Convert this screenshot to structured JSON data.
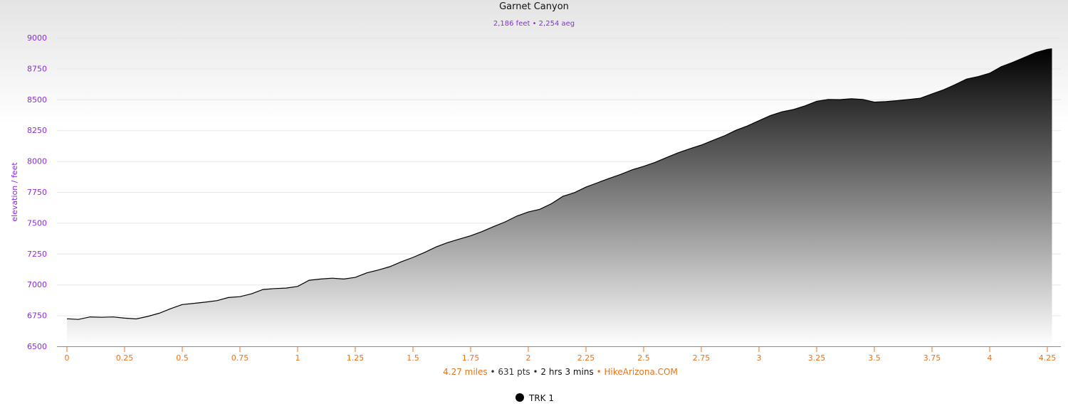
{
  "colors": {
    "purple": "#8a2be2",
    "orange": "#e8731c",
    "line": "#000000",
    "grid": "#e6e6e6"
  },
  "chart_data": {
    "type": "area",
    "title": "Garnet Canyon",
    "subtitle": "2,186 feet • 2,254 aeg",
    "ylabel": "elevation / feet",
    "xlabel": "",
    "xlim": [
      0,
      4.27
    ],
    "ylim": [
      6500,
      9000
    ],
    "x_ticks": [
      "0",
      "0.25",
      "0.5",
      "0.75",
      "1",
      "1.25",
      "1.5",
      "1.75",
      "2",
      "2.25",
      "2.5",
      "2.75",
      "3",
      "3.25",
      "3.5",
      "3.75",
      "4",
      "4.25"
    ],
    "y_ticks": [
      "6500",
      "6750",
      "7000",
      "7250",
      "7500",
      "7750",
      "8000",
      "8250",
      "8500",
      "8750",
      "9000"
    ],
    "footer": {
      "distance": "4.27 miles",
      "sep1": " • ",
      "points": "631 pts",
      "sep2": " • ",
      "duration": "2 hrs 3 mins",
      "sep3": " • ",
      "source": "HikeArizona.COM"
    },
    "grid": "horizontal",
    "legend_position": "bottom-center",
    "series": [
      {
        "name": "TRK 1",
        "x": [
          0,
          0.05,
          0.1,
          0.15,
          0.2,
          0.25,
          0.3,
          0.35,
          0.4,
          0.45,
          0.5,
          0.55,
          0.6,
          0.65,
          0.7,
          0.75,
          0.8,
          0.85,
          0.9,
          0.95,
          1.0,
          1.05,
          1.1,
          1.15,
          1.2,
          1.25,
          1.3,
          1.35,
          1.4,
          1.45,
          1.5,
          1.55,
          1.6,
          1.65,
          1.7,
          1.75,
          1.8,
          1.85,
          1.9,
          1.95,
          2.0,
          2.05,
          2.1,
          2.15,
          2.2,
          2.25,
          2.3,
          2.35,
          2.4,
          2.45,
          2.5,
          2.55,
          2.6,
          2.65,
          2.7,
          2.75,
          2.8,
          2.85,
          2.9,
          2.95,
          3.0,
          3.05,
          3.1,
          3.15,
          3.2,
          3.25,
          3.3,
          3.35,
          3.4,
          3.45,
          3.5,
          3.55,
          3.6,
          3.65,
          3.7,
          3.75,
          3.8,
          3.85,
          3.9,
          3.95,
          4.0,
          4.05,
          4.1,
          4.15,
          4.2,
          4.25,
          4.27
        ],
        "values": [
          6723,
          6718,
          6738,
          6735,
          6738,
          6728,
          6722,
          6742,
          6768,
          6805,
          6838,
          6848,
          6858,
          6870,
          6895,
          6902,
          6925,
          6960,
          6968,
          6972,
          6985,
          7035,
          7045,
          7052,
          7045,
          7058,
          7095,
          7118,
          7145,
          7185,
          7220,
          7260,
          7305,
          7340,
          7368,
          7395,
          7430,
          7470,
          7508,
          7555,
          7588,
          7610,
          7655,
          7715,
          7745,
          7790,
          7825,
          7860,
          7892,
          7930,
          7958,
          7990,
          8030,
          8068,
          8100,
          8130,
          8168,
          8205,
          8250,
          8285,
          8328,
          8370,
          8400,
          8418,
          8448,
          8485,
          8500,
          8498,
          8505,
          8500,
          8478,
          8482,
          8490,
          8500,
          8510,
          8545,
          8578,
          8620,
          8665,
          8685,
          8712,
          8765,
          8800,
          8840,
          8880,
          8905,
          8910
        ]
      }
    ]
  }
}
